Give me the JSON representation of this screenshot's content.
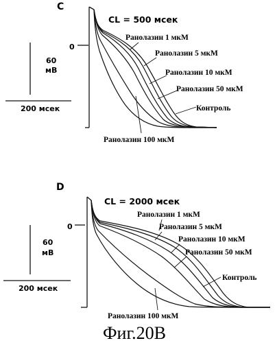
{
  "caption": "Фиг.20В",
  "panels": [
    {
      "letter": "C",
      "cl_label": "CL = 500 мсек",
      "zero_label": "0",
      "scale_voltage_value": "60",
      "scale_voltage_unit": "мВ",
      "scale_time": "200 мсек",
      "traces": [
        {
          "label": "Ранолазин 1 мкМ"
        },
        {
          "label": "Ранолазин 5 мкМ"
        },
        {
          "label": "Ранолазин 10 мкМ"
        },
        {
          "label": "Ранолазин 50 мкМ"
        },
        {
          "label": "Контроль"
        },
        {
          "label": "Ранолазин 100 мкМ"
        }
      ]
    },
    {
      "letter": "D",
      "cl_label": "CL = 2000 мсек",
      "zero_label": "0",
      "scale_voltage_value": "60",
      "scale_voltage_unit": "мВ",
      "scale_time": "200 мсек",
      "traces": [
        {
          "label": "Ранолазин 1 мкМ"
        },
        {
          "label": "Ранолазин 5 мкМ"
        },
        {
          "label": "Ранолазин 10 мкМ"
        },
        {
          "label": "Ранолазин 50 мкМ"
        },
        {
          "label": "Контроль"
        },
        {
          "label": "Ранолазин 100 мкМ"
        }
      ]
    }
  ]
}
